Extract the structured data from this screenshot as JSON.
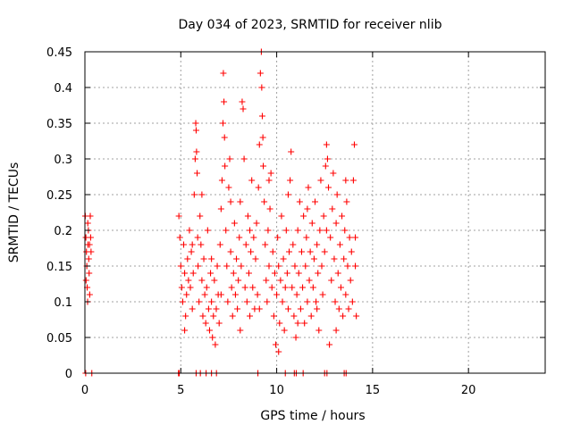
{
  "chart_data": {
    "type": "scatter",
    "title": "Day 034 of 2023, SRMTID for receiver nlib",
    "xlabel": "GPS time / hours",
    "ylabel": "SRMTID / TECUs",
    "xlim": [
      0,
      24
    ],
    "ylim": [
      0,
      0.45
    ],
    "xticks": [
      0,
      5,
      10,
      15,
      20
    ],
    "xtick_labels": [
      "0",
      "5",
      "10",
      "15",
      "20"
    ],
    "yticks": [
      0,
      0.05,
      0.1,
      0.15,
      0.2,
      0.25,
      0.3,
      0.35,
      0.4,
      0.45
    ],
    "ytick_labels": [
      "0",
      "0.05",
      "0.1",
      "0.15",
      "0.2",
      "0.25",
      "0.3",
      "0.35",
      "0.4",
      "0.45"
    ],
    "grid": true,
    "marker": "+",
    "series": [
      {
        "color": "#ff0000",
        "points": [
          [
            0.02,
            0.22
          ],
          [
            0.05,
            0.19
          ],
          [
            0.08,
            0.17
          ],
          [
            0.1,
            0.15
          ],
          [
            0.12,
            0.12
          ],
          [
            0.14,
            0.1
          ],
          [
            0.16,
            0.18
          ],
          [
            0.18,
            0.2
          ],
          [
            0.2,
            0.16
          ],
          [
            0.22,
            0.14
          ],
          [
            0.25,
            0.11
          ],
          [
            0.28,
            0.22
          ],
          [
            0.3,
            0.19
          ],
          [
            0.32,
            0.17
          ],
          [
            0.06,
            0.13
          ],
          [
            0.15,
            0.21
          ],
          [
            0.24,
            0.18
          ],
          [
            4.9,
            0.22
          ],
          [
            4.95,
            0.19
          ],
          [
            5.0,
            0.15
          ],
          [
            5.05,
            0.12
          ],
          [
            5.1,
            0.1
          ],
          [
            5.15,
            0.18
          ],
          [
            5.2,
            0.14
          ],
          [
            5.25,
            0.08
          ],
          [
            5.3,
            0.11
          ],
          [
            5.35,
            0.16
          ],
          [
            5.4,
            0.13
          ],
          [
            5.45,
            0.2
          ],
          [
            5.5,
            0.12
          ],
          [
            5.55,
            0.17
          ],
          [
            5.6,
            0.09
          ],
          [
            5.65,
            0.14
          ],
          [
            5.7,
            0.25
          ],
          [
            5.75,
            0.3
          ],
          [
            5.78,
            0.35
          ],
          [
            5.8,
            0.34
          ],
          [
            5.82,
            0.31
          ],
          [
            5.85,
            0.28
          ],
          [
            5.88,
            0.19
          ],
          [
            5.9,
            0.15
          ],
          [
            5.95,
            0.1
          ],
          [
            6.0,
            0.22
          ],
          [
            6.05,
            0.18
          ],
          [
            6.1,
            0.13
          ],
          [
            6.15,
            0.08
          ],
          [
            6.2,
            0.16
          ],
          [
            6.25,
            0.11
          ],
          [
            6.3,
            0.07
          ],
          [
            6.35,
            0.12
          ],
          [
            6.4,
            0.2
          ],
          [
            6.45,
            0.09
          ],
          [
            6.5,
            0.06
          ],
          [
            6.55,
            0.14
          ],
          [
            6.6,
            0.1
          ],
          [
            6.65,
            0.05
          ],
          [
            6.7,
            0.08
          ],
          [
            6.75,
            0.13
          ],
          [
            6.8,
            0.04
          ],
          [
            6.85,
            0.09
          ],
          [
            6.9,
            0.15
          ],
          [
            6.95,
            0.11
          ],
          [
            7.0,
            0.07
          ],
          [
            7.05,
            0.18
          ],
          [
            7.1,
            0.23
          ],
          [
            7.15,
            0.27
          ],
          [
            7.2,
            0.35
          ],
          [
            7.22,
            0.42
          ],
          [
            7.25,
            0.38
          ],
          [
            7.28,
            0.33
          ],
          [
            7.3,
            0.29
          ],
          [
            7.35,
            0.2
          ],
          [
            7.4,
            0.15
          ],
          [
            7.45,
            0.1
          ],
          [
            7.5,
            0.26
          ],
          [
            7.55,
            0.3
          ],
          [
            7.6,
            0.17
          ],
          [
            7.65,
            0.12
          ],
          [
            7.7,
            0.08
          ],
          [
            7.75,
            0.14
          ],
          [
            7.8,
            0.21
          ],
          [
            7.85,
            0.11
          ],
          [
            7.9,
            0.16
          ],
          [
            7.95,
            0.09
          ],
          [
            8.0,
            0.13
          ],
          [
            8.05,
            0.19
          ],
          [
            8.1,
            0.24
          ],
          [
            8.15,
            0.15
          ],
          [
            8.2,
            0.38
          ],
          [
            8.25,
            0.37
          ],
          [
            8.3,
            0.3
          ],
          [
            8.35,
            0.12
          ],
          [
            8.4,
            0.18
          ],
          [
            8.45,
            0.1
          ],
          [
            8.5,
            0.22
          ],
          [
            8.55,
            0.14
          ],
          [
            8.6,
            0.08
          ],
          [
            8.65,
            0.17
          ],
          [
            8.7,
            0.27
          ],
          [
            8.75,
            0.12
          ],
          [
            8.8,
            0.19
          ],
          [
            8.85,
            0.09
          ],
          [
            8.9,
            0.16
          ],
          [
            8.95,
            0.21
          ],
          [
            9.0,
            0.11
          ],
          [
            9.05,
            0.26
          ],
          [
            9.1,
            0.32
          ],
          [
            9.15,
            0.42
          ],
          [
            9.2,
            0.45
          ],
          [
            9.22,
            0.4
          ],
          [
            9.25,
            0.36
          ],
          [
            9.28,
            0.33
          ],
          [
            9.3,
            0.29
          ],
          [
            9.35,
            0.24
          ],
          [
            9.4,
            0.18
          ],
          [
            9.45,
            0.13
          ],
          [
            9.5,
            0.1
          ],
          [
            9.55,
            0.2
          ],
          [
            9.6,
            0.15
          ],
          [
            9.65,
            0.23
          ],
          [
            9.7,
            0.28
          ],
          [
            9.75,
            0.12
          ],
          [
            9.8,
            0.17
          ],
          [
            9.85,
            0.08
          ],
          [
            9.9,
            0.14
          ],
          [
            9.95,
            0.04
          ],
          [
            10.0,
            0.11
          ],
          [
            10.05,
            0.19
          ],
          [
            10.1,
            0.15
          ],
          [
            10.15,
            0.07
          ],
          [
            10.2,
            0.13
          ],
          [
            10.25,
            0.22
          ],
          [
            10.3,
            0.1
          ],
          [
            10.35,
            0.16
          ],
          [
            10.4,
            0.06
          ],
          [
            10.45,
            0.12
          ],
          [
            10.5,
            0.2
          ],
          [
            10.55,
            0.14
          ],
          [
            10.6,
            0.09
          ],
          [
            10.65,
            0.17
          ],
          [
            10.7,
            0.27
          ],
          [
            10.75,
            0.31
          ],
          [
            10.8,
            0.12
          ],
          [
            10.85,
            0.18
          ],
          [
            10.9,
            0.08
          ],
          [
            10.95,
            0.15
          ],
          [
            11.0,
            0.05
          ],
          [
            11.05,
            0.11
          ],
          [
            11.1,
            0.2
          ],
          [
            11.15,
            0.14
          ],
          [
            11.2,
            0.24
          ],
          [
            11.25,
            0.09
          ],
          [
            11.3,
            0.17
          ],
          [
            11.35,
            0.12
          ],
          [
            11.4,
            0.22
          ],
          [
            11.45,
            0.07
          ],
          [
            11.5,
            0.15
          ],
          [
            11.55,
            0.19
          ],
          [
            11.6,
            0.1
          ],
          [
            11.65,
            0.26
          ],
          [
            11.7,
            0.13
          ],
          [
            11.75,
            0.17
          ],
          [
            11.8,
            0.08
          ],
          [
            11.85,
            0.21
          ],
          [
            11.9,
            0.12
          ],
          [
            11.95,
            0.16
          ],
          [
            12.0,
            0.24
          ],
          [
            12.05,
            0.1
          ],
          [
            12.1,
            0.18
          ],
          [
            12.15,
            0.14
          ],
          [
            12.2,
            0.06
          ],
          [
            12.25,
            0.2
          ],
          [
            12.3,
            0.27
          ],
          [
            12.35,
            0.15
          ],
          [
            12.4,
            0.11
          ],
          [
            12.45,
            0.22
          ],
          [
            12.5,
            0.17
          ],
          [
            12.55,
            0.29
          ],
          [
            12.6,
            0.32
          ],
          [
            12.65,
            0.3
          ],
          [
            12.7,
            0.26
          ],
          [
            12.75,
            0.04
          ],
          [
            12.8,
            0.19
          ],
          [
            12.85,
            0.13
          ],
          [
            12.9,
            0.23
          ],
          [
            12.95,
            0.28
          ],
          [
            13.0,
            0.16
          ],
          [
            13.05,
            0.1
          ],
          [
            13.1,
            0.21
          ],
          [
            13.15,
            0.25
          ],
          [
            13.2,
            0.14
          ],
          [
            13.25,
            0.09
          ],
          [
            13.3,
            0.18
          ],
          [
            13.35,
            0.12
          ],
          [
            13.4,
            0.22
          ],
          [
            13.45,
            0.08
          ],
          [
            13.5,
            0.16
          ],
          [
            13.55,
            0.2
          ],
          [
            13.6,
            0.11
          ],
          [
            13.65,
            0.24
          ],
          [
            13.7,
            0.15
          ],
          [
            13.75,
            0.09
          ],
          [
            13.8,
            0.19
          ],
          [
            13.85,
            0.13
          ],
          [
            13.9,
            0.17
          ],
          [
            13.95,
            0.1
          ],
          [
            14.0,
            0.27
          ],
          [
            14.05,
            0.32
          ],
          [
            14.1,
            0.15
          ],
          [
            14.15,
            0.08
          ],
          [
            5.2,
            0.06
          ],
          [
            5.6,
            0.18
          ],
          [
            6.1,
            0.25
          ],
          [
            6.6,
            0.16
          ],
          [
            7.1,
            0.11
          ],
          [
            7.6,
            0.24
          ],
          [
            8.1,
            0.06
          ],
          [
            8.6,
            0.2
          ],
          [
            9.1,
            0.09
          ],
          [
            9.6,
            0.27
          ],
          [
            10.1,
            0.03
          ],
          [
            10.6,
            0.25
          ],
          [
            11.1,
            0.07
          ],
          [
            11.6,
            0.23
          ],
          [
            12.1,
            0.09
          ],
          [
            12.6,
            0.2
          ],
          [
            13.1,
            0.06
          ],
          [
            13.6,
            0.27
          ],
          [
            14.1,
            0.19
          ],
          [
            0.04,
            0.0
          ],
          [
            0.36,
            0.0
          ],
          [
            4.88,
            0.0
          ],
          [
            4.92,
            0.0
          ],
          [
            5.8,
            0.0
          ],
          [
            6.02,
            0.0
          ],
          [
            6.32,
            0.0
          ],
          [
            6.6,
            0.0
          ],
          [
            6.86,
            0.0
          ],
          [
            9.02,
            0.0
          ],
          [
            10.45,
            0.0
          ],
          [
            10.92,
            0.0
          ],
          [
            11.02,
            0.0
          ],
          [
            11.38,
            0.0
          ],
          [
            12.5,
            0.0
          ],
          [
            12.62,
            0.0
          ],
          [
            13.52,
            0.0
          ],
          [
            13.62,
            0.0
          ]
        ]
      }
    ]
  }
}
